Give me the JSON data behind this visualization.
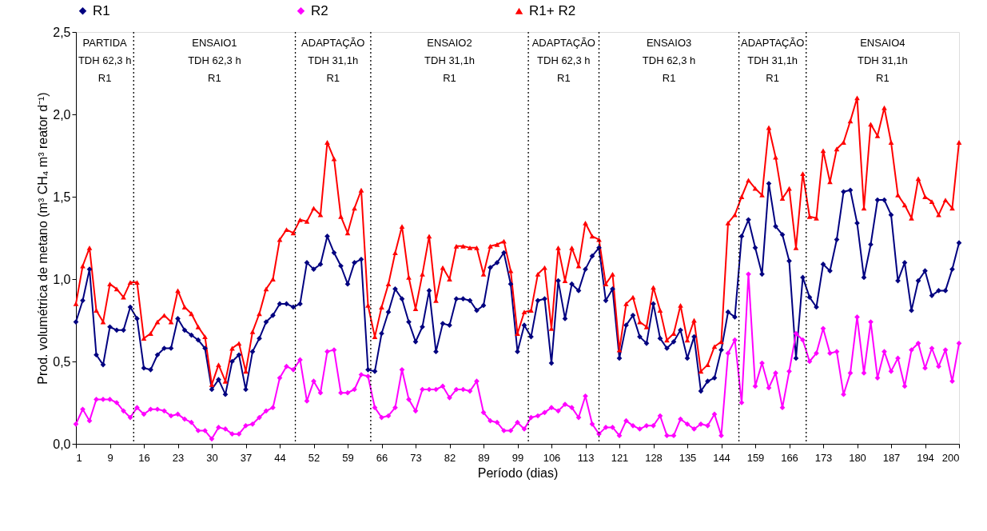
{
  "chart_data": {
    "type": "line",
    "xlabel": "Período (dias)",
    "ylabel": "Prod. volumétrica de metano (m³ CH₄ m³ reator d⁻¹)",
    "legend": "top",
    "line_style": "solid",
    "categories": [
      "1",
      null,
      null,
      null,
      null,
      "9",
      null,
      null,
      null,
      null,
      "16",
      null,
      null,
      null,
      null,
      "23",
      null,
      null,
      null,
      null,
      "30",
      null,
      null,
      null,
      null,
      "37",
      null,
      null,
      null,
      null,
      "44",
      null,
      null,
      null,
      null,
      "52",
      null,
      null,
      null,
      null,
      "59",
      null,
      null,
      null,
      null,
      "66",
      null,
      null,
      null,
      null,
      "73",
      null,
      null,
      null,
      null,
      "82",
      null,
      null,
      null,
      null,
      "89",
      null,
      null,
      null,
      null,
      "99",
      null,
      null,
      null,
      null,
      "106",
      null,
      null,
      null,
      null,
      "113",
      null,
      null,
      null,
      null,
      "121",
      null,
      null,
      null,
      null,
      "128",
      null,
      null,
      null,
      null,
      "135",
      null,
      null,
      null,
      null,
      "144",
      null,
      null,
      null,
      null,
      "159",
      null,
      null,
      null,
      null,
      "166",
      null,
      null,
      null,
      null,
      "173",
      null,
      null,
      null,
      null,
      "180",
      null,
      null,
      null,
      null,
      "187",
      null,
      null,
      null,
      null,
      "194",
      null,
      null,
      null,
      null,
      "200"
    ],
    "ylim": [
      0,
      2.5
    ],
    "yticks": [
      {
        "value": 0,
        "label": "0,0"
      },
      {
        "value": 0.5,
        "label": "0,5"
      },
      {
        "value": 1,
        "label": "1,0"
      },
      {
        "value": 1.5,
        "label": "1,5"
      },
      {
        "value": 2,
        "label": "2,0"
      },
      {
        "value": 2.5,
        "label": "2,5"
      }
    ],
    "series": [
      {
        "name": "R1",
        "color": "#000080",
        "marker": "diamond",
        "values": [
          0.74,
          0.87,
          1.06,
          0.54,
          0.48,
          0.71,
          0.69,
          0.69,
          0.83,
          0.76,
          0.46,
          0.45,
          0.54,
          0.58,
          0.58,
          0.76,
          0.69,
          0.66,
          0.63,
          0.58,
          0.33,
          0.39,
          0.3,
          0.5,
          0.54,
          0.33,
          0.56,
          0.64,
          0.74,
          0.78,
          0.85,
          0.85,
          0.83,
          0.85,
          1.1,
          1.06,
          1.09,
          1.26,
          1.16,
          1.08,
          0.97,
          1.1,
          1.12,
          0.45,
          0.44,
          0.67,
          0.8,
          0.94,
          0.88,
          0.74,
          0.62,
          0.71,
          0.93,
          0.56,
          0.73,
          0.72,
          0.88,
          0.88,
          0.87,
          0.81,
          0.84,
          1.07,
          1.1,
          1.16,
          0.97,
          0.56,
          0.72,
          0.65,
          0.87,
          0.88,
          0.49,
          0.99,
          0.76,
          0.97,
          0.93,
          1.06,
          1.14,
          1.19,
          0.87,
          0.94,
          0.52,
          0.72,
          0.78,
          0.65,
          0.61,
          0.85,
          0.64,
          0.58,
          0.62,
          0.69,
          0.52,
          0.65,
          0.32,
          0.38,
          0.4,
          0.57,
          0.8,
          0.77,
          1.26,
          1.36,
          1.19,
          1.03,
          1.58,
          1.32,
          1.27,
          1.11,
          0.52,
          1.01,
          0.89,
          0.83,
          1.09,
          1.05,
          1.24,
          1.53,
          1.54,
          1.34,
          1.01,
          1.21,
          1.48,
          1.48,
          1.39,
          0.99,
          1.1,
          0.81,
          0.99,
          1.05,
          0.9,
          0.93,
          0.93,
          1.06,
          1.22
        ]
      },
      {
        "name": "R2",
        "color": "#ff00ff",
        "marker": "diamond",
        "values": [
          0.12,
          0.21,
          0.14,
          0.27,
          0.27,
          0.27,
          0.25,
          0.2,
          0.16,
          0.22,
          0.18,
          0.21,
          0.21,
          0.2,
          0.17,
          0.18,
          0.15,
          0.13,
          0.08,
          0.08,
          0.03,
          0.1,
          0.09,
          0.06,
          0.06,
          0.11,
          0.12,
          0.16,
          0.2,
          0.22,
          0.4,
          0.47,
          0.45,
          0.51,
          0.26,
          0.38,
          0.31,
          0.56,
          0.57,
          0.31,
          0.31,
          0.33,
          0.42,
          0.41,
          0.22,
          0.16,
          0.17,
          0.22,
          0.45,
          0.27,
          0.2,
          0.33,
          0.33,
          0.33,
          0.35,
          0.28,
          0.33,
          0.33,
          0.32,
          0.38,
          0.19,
          0.14,
          0.13,
          0.08,
          0.08,
          0.13,
          0.09,
          0.16,
          0.17,
          0.19,
          0.22,
          0.2,
          0.24,
          0.22,
          0.16,
          0.29,
          0.12,
          0.06,
          0.1,
          0.1,
          0.05,
          0.14,
          0.11,
          0.09,
          0.11,
          0.11,
          0.17,
          0.05,
          0.05,
          0.15,
          0.12,
          0.09,
          0.12,
          0.11,
          0.18,
          0.05,
          0.55,
          0.63,
          0.25,
          1.03,
          0.35,
          0.49,
          0.34,
          0.43,
          0.22,
          0.44,
          0.67,
          0.63,
          0.5,
          0.55,
          0.7,
          0.55,
          0.56,
          0.3,
          0.43,
          0.77,
          0.43,
          0.74,
          0.4,
          0.56,
          0.44,
          0.52,
          0.35,
          0.57,
          0.61,
          0.46,
          0.58,
          0.47,
          0.57,
          0.38,
          0.61
        ]
      },
      {
        "name": "R1+ R2",
        "color": "#ff0000",
        "marker": "triangle",
        "values": [
          0.85,
          1.08,
          1.19,
          0.81,
          0.74,
          0.97,
          0.94,
          0.89,
          0.98,
          0.98,
          0.64,
          0.67,
          0.74,
          0.78,
          0.74,
          0.93,
          0.83,
          0.79,
          0.71,
          0.65,
          0.36,
          0.48,
          0.38,
          0.58,
          0.61,
          0.44,
          0.68,
          0.79,
          0.94,
          1.0,
          1.24,
          1.3,
          1.28,
          1.36,
          1.35,
          1.43,
          1.39,
          1.83,
          1.73,
          1.38,
          1.28,
          1.43,
          1.54,
          0.84,
          0.65,
          0.83,
          0.97,
          1.16,
          1.32,
          1.01,
          0.82,
          1.03,
          1.26,
          0.87,
          1.07,
          1.0,
          1.2,
          1.2,
          1.19,
          1.19,
          1.03,
          1.2,
          1.21,
          1.23,
          1.05,
          0.67,
          0.8,
          0.81,
          1.03,
          1.07,
          0.7,
          1.19,
          0.99,
          1.19,
          1.08,
          1.34,
          1.26,
          1.24,
          0.97,
          1.03,
          0.57,
          0.85,
          0.89,
          0.74,
          0.71,
          0.95,
          0.81,
          0.63,
          0.67,
          0.84,
          0.63,
          0.75,
          0.44,
          0.48,
          0.59,
          0.62,
          1.34,
          1.39,
          1.5,
          1.6,
          1.55,
          1.51,
          1.92,
          1.74,
          1.49,
          1.55,
          1.19,
          1.64,
          1.38,
          1.37,
          1.78,
          1.59,
          1.79,
          1.83,
          1.96,
          2.1,
          1.43,
          1.94,
          1.87,
          2.04,
          1.83,
          1.51,
          1.45,
          1.37,
          1.61,
          1.5,
          1.47,
          1.39,
          1.48,
          1.43,
          1.83
        ]
      }
    ],
    "annotations": [
      "PARTIDA\nTDH 62,3 h\nR1",
      "ENSAIO1\nTDH 62,3 h\nR1",
      "ADAPTAÇÃO\nTDH 31,1h\nR1",
      "ENSAIO2\nTDH 31,1h\nR1",
      "ADAPTAÇÃO\nTDH 62,3 h\nR1",
      "ENSAIO3\nTDH 62,3 h\nR1",
      "ADAPTAÇÃO\nTDH 31,1h\nR1",
      "ENSAIO4\nTDH 31,1h\nR1"
    ]
  }
}
